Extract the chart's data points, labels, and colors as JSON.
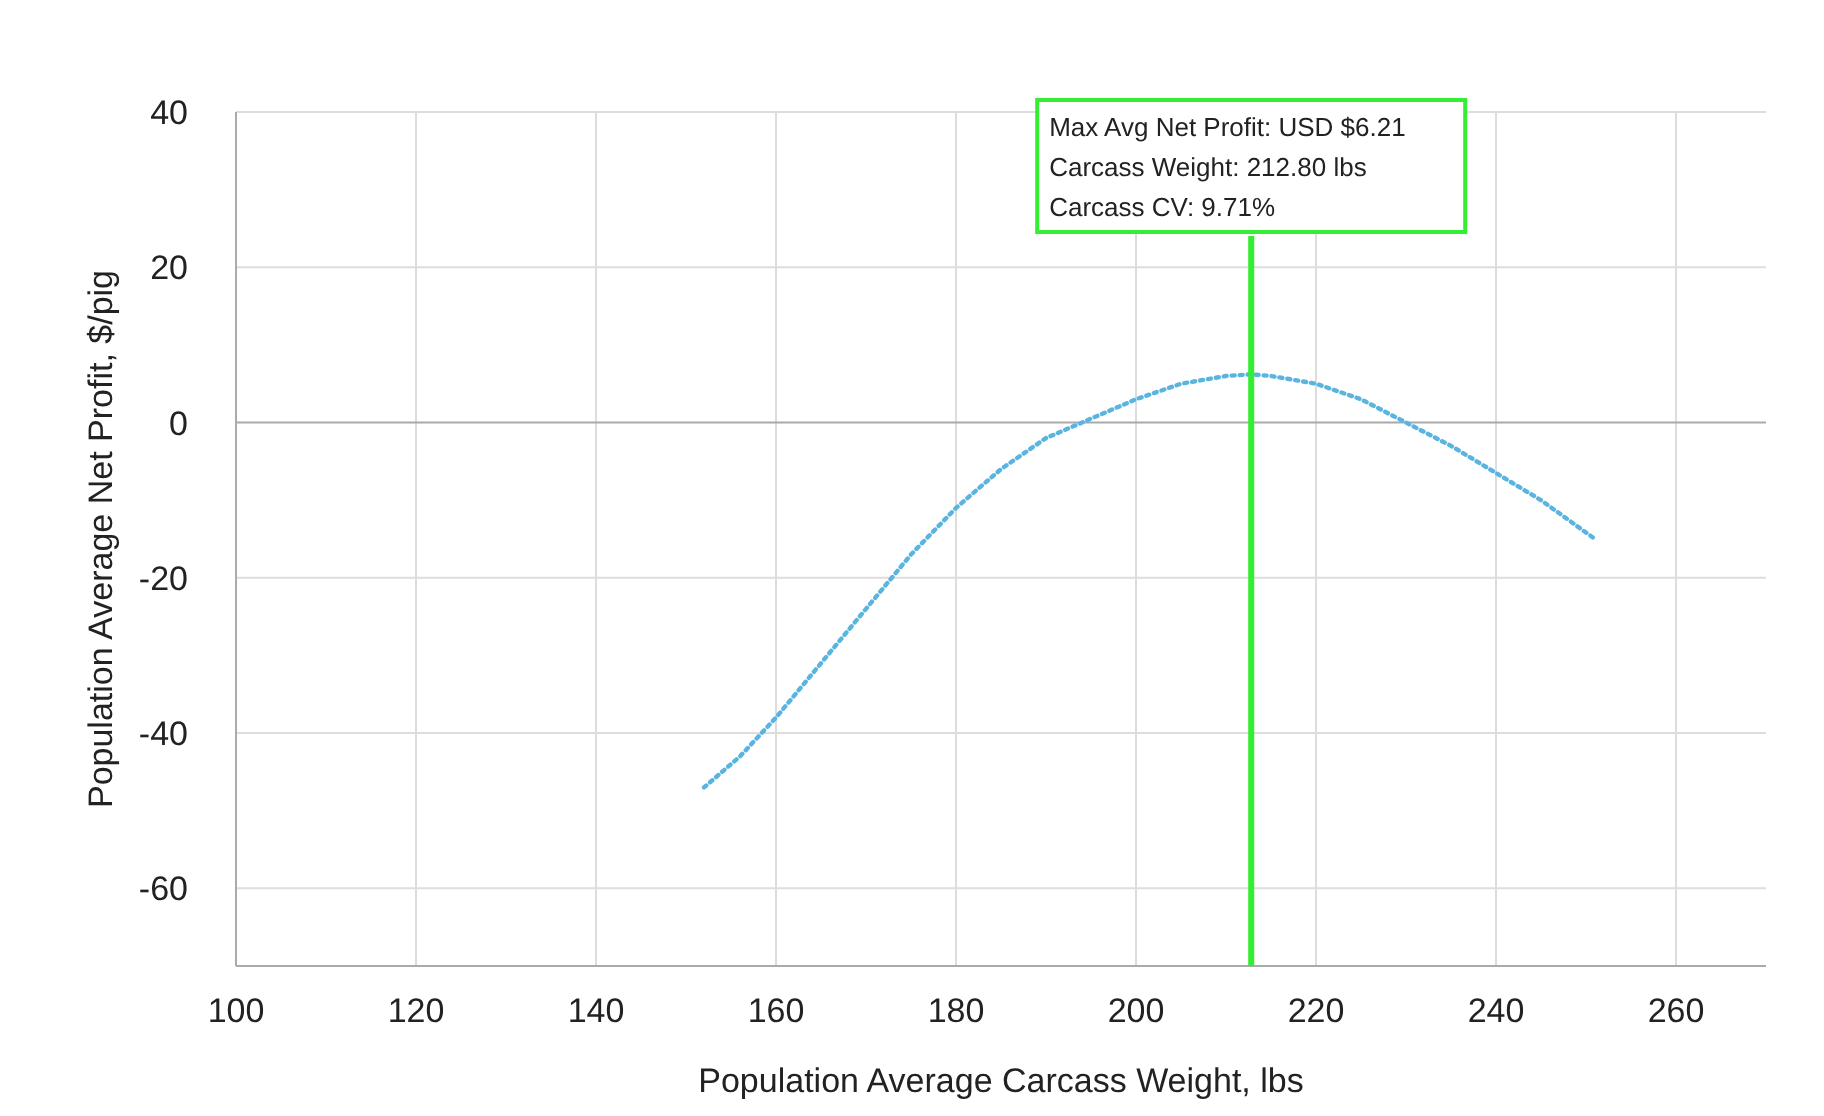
{
  "chart_data": {
    "type": "line",
    "xlabel": "Population Average Carcass Weight, lbs",
    "ylabel": "Population Average Net Profit, $/pig",
    "xlim": [
      100,
      270
    ],
    "xticks": [
      100,
      120,
      140,
      160,
      180,
      200,
      220,
      240,
      260
    ],
    "ylim": [
      -70,
      40
    ],
    "yticks": [
      -60,
      -40,
      -20,
      0,
      20,
      40
    ],
    "grid": true,
    "line_style": "dotted",
    "series": [
      {
        "color": "#5ab4e0",
        "x": [
          152,
          156,
          160,
          165,
          170,
          175,
          180,
          185,
          190,
          195,
          200,
          205,
          210,
          212.8,
          215,
          220,
          225,
          230,
          235,
          240,
          245,
          251
        ],
        "values": [
          -47,
          -43,
          -38,
          -31,
          -24,
          -17,
          -11,
          -6,
          -2,
          0.5,
          3,
          5,
          6,
          6.21,
          6,
          5,
          3,
          0,
          -3,
          -6.5,
          -10,
          -15
        ]
      }
    ],
    "ref_lines": [
      {
        "axis": "x",
        "value": 212.8,
        "color": "#33ee33"
      }
    ],
    "annotations": [
      "Max Avg Net Profit: USD $6.21",
      "Carcass Weight: 212.80 lbs",
      "Carcass CV: 9.71%"
    ]
  }
}
